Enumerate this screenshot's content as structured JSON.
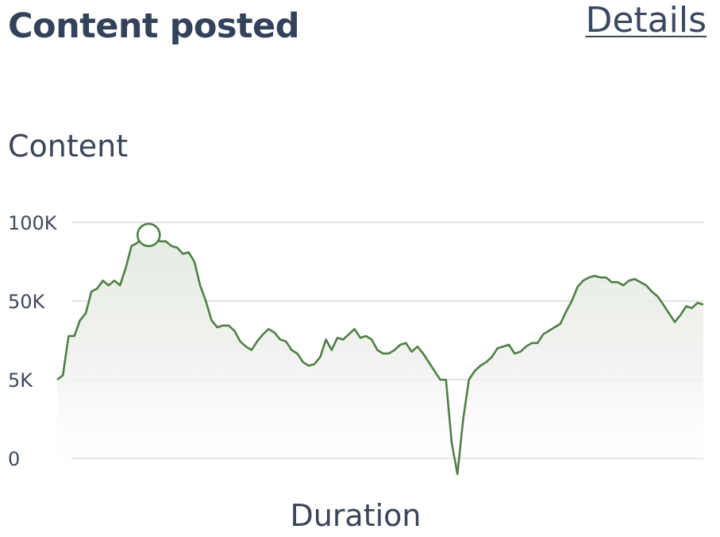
{
  "header": {
    "title": "Content posted",
    "details_label": "Details"
  },
  "colors": {
    "line": "#4f7f45",
    "grid": "#d9d9d9",
    "text": "#33425b"
  },
  "chart_data": {
    "type": "area",
    "ylabel": "Content",
    "xlabel": "Duration",
    "y_ticks": [
      {
        "label": "0",
        "value": 0
      },
      {
        "label": "5K",
        "value": 5000
      },
      {
        "label": "50K",
        "value": 50000
      },
      {
        "label": "100K",
        "value": 100000
      }
    ],
    "grid": true,
    "series": [
      {
        "points": [
          [
            0,
            5000
          ],
          [
            1,
            7500
          ],
          [
            2,
            30000
          ],
          [
            3,
            30000
          ],
          [
            4,
            39000
          ],
          [
            5,
            43000
          ],
          [
            6,
            56000
          ],
          [
            7,
            58000
          ],
          [
            8,
            63000
          ],
          [
            9,
            60000
          ],
          [
            10,
            63000
          ],
          [
            11,
            60000
          ],
          [
            12,
            71000
          ],
          [
            13,
            85000
          ],
          [
            14,
            87000
          ],
          [
            15,
            91000
          ],
          [
            16,
            92000
          ],
          [
            17,
            89000
          ],
          [
            18,
            88000
          ],
          [
            19,
            88000
          ],
          [
            20,
            85000
          ],
          [
            21,
            84000
          ],
          [
            22,
            80000
          ],
          [
            23,
            81000
          ],
          [
            24,
            75000
          ],
          [
            25,
            60000
          ],
          [
            26,
            50000
          ],
          [
            27,
            39000
          ],
          [
            28,
            35000
          ],
          [
            29,
            36000
          ],
          [
            30,
            36000
          ],
          [
            31,
            33000
          ],
          [
            32,
            27000
          ],
          [
            33,
            24000
          ],
          [
            34,
            22000
          ],
          [
            35,
            27000
          ],
          [
            36,
            31000
          ],
          [
            37,
            34000
          ],
          [
            38,
            32000
          ],
          [
            39,
            28000
          ],
          [
            40,
            27000
          ],
          [
            41,
            22000
          ],
          [
            42,
            20000
          ],
          [
            43,
            15000
          ],
          [
            44,
            13000
          ],
          [
            45,
            14000
          ],
          [
            46,
            18000
          ],
          [
            47,
            28000
          ],
          [
            48,
            22000
          ],
          [
            49,
            29000
          ],
          [
            50,
            28000
          ],
          [
            51,
            31000
          ],
          [
            52,
            34000
          ],
          [
            53,
            29000
          ],
          [
            54,
            30000
          ],
          [
            55,
            28000
          ],
          [
            56,
            22000
          ],
          [
            57,
            20000
          ],
          [
            58,
            20000
          ],
          [
            59,
            22000
          ],
          [
            60,
            25000
          ],
          [
            61,
            26000
          ],
          [
            62,
            21000
          ],
          [
            63,
            24000
          ],
          [
            64,
            20000
          ],
          [
            65,
            15000
          ],
          [
            66,
            10000
          ],
          [
            67,
            5000
          ],
          [
            68,
            5000
          ],
          [
            69,
            1000
          ],
          [
            70,
            -1000
          ],
          [
            71,
            2500
          ],
          [
            72,
            5000
          ],
          [
            73,
            10000
          ],
          [
            74,
            13000
          ],
          [
            75,
            15000
          ],
          [
            76,
            18000
          ],
          [
            77,
            23000
          ],
          [
            78,
            24000
          ],
          [
            79,
            25000
          ],
          [
            80,
            20000
          ],
          [
            81,
            21000
          ],
          [
            82,
            24000
          ],
          [
            83,
            26000
          ],
          [
            84,
            26000
          ],
          [
            85,
            31000
          ],
          [
            86,
            33000
          ],
          [
            87,
            35000
          ],
          [
            88,
            37000
          ],
          [
            89,
            44000
          ],
          [
            90,
            50000
          ],
          [
            91,
            59000
          ],
          [
            92,
            63000
          ],
          [
            93,
            65000
          ],
          [
            94,
            66000
          ],
          [
            95,
            65000
          ],
          [
            96,
            65000
          ],
          [
            97,
            62000
          ],
          [
            98,
            62000
          ],
          [
            99,
            60000
          ],
          [
            100,
            63000
          ],
          [
            101,
            64000
          ],
          [
            102,
            62000
          ],
          [
            103,
            60000
          ],
          [
            104,
            56000
          ],
          [
            105,
            53000
          ],
          [
            106,
            48000
          ],
          [
            107,
            43000
          ],
          [
            108,
            38000
          ],
          [
            109,
            42000
          ],
          [
            110,
            47000
          ],
          [
            111,
            46000
          ],
          [
            112,
            49000
          ],
          [
            113,
            48000
          ]
        ],
        "highlight_index": 16
      }
    ]
  }
}
